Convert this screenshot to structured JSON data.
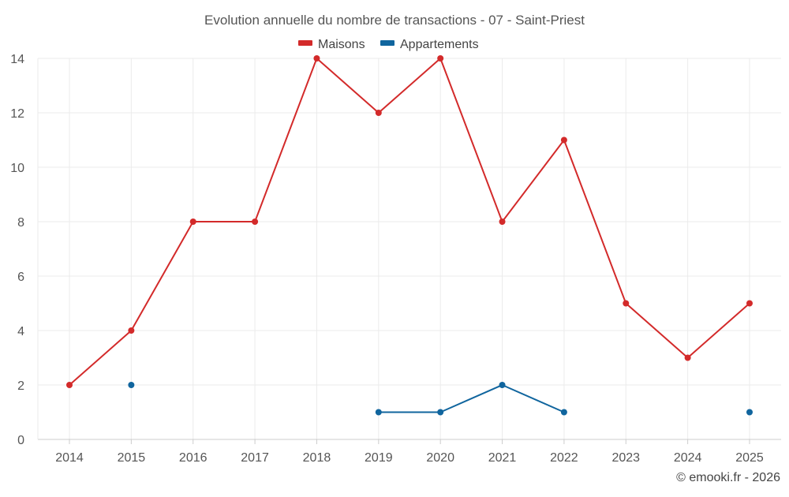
{
  "chart_data": {
    "type": "line",
    "title": "Evolution annuelle du nombre de transactions - 07 - Saint-Priest",
    "xlabel": "",
    "ylabel": "",
    "categories": [
      "2014",
      "2015",
      "2016",
      "2017",
      "2018",
      "2019",
      "2020",
      "2021",
      "2022",
      "2023",
      "2024",
      "2025"
    ],
    "y_ticks": [
      "0",
      "2",
      "4",
      "6",
      "8",
      "10",
      "12",
      "14"
    ],
    "ylim": [
      0,
      14
    ],
    "grid": true,
    "legend_position": "top-center",
    "series": [
      {
        "name": "Maisons",
        "color": "#d32a2a",
        "values": [
          2,
          4,
          8,
          8,
          14,
          12,
          14,
          8,
          11,
          5,
          3,
          5
        ]
      },
      {
        "name": "Appartements",
        "color": "#10659e",
        "values": [
          null,
          2,
          null,
          null,
          null,
          1,
          1,
          2,
          1,
          null,
          null,
          1
        ]
      }
    ]
  },
  "footer": {
    "credit": "© emooki.fr - 2026"
  }
}
